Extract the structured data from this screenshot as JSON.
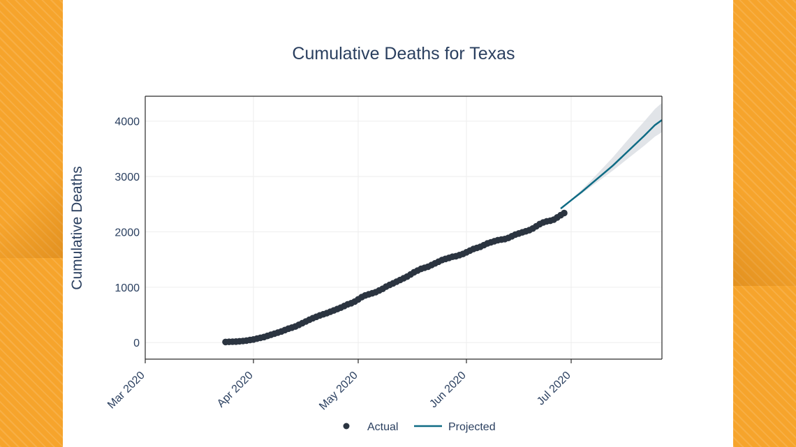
{
  "colors": {
    "accent": "#f6a42c",
    "text": "#2a3f5f",
    "actual_marker": "#2b3440",
    "projected_line": "#0e6b84",
    "band": "#d9dde2",
    "grid": "#eeeeee"
  },
  "chart_data": {
    "type": "line",
    "title": "Cumulative Deaths for Texas",
    "xlabel": "",
    "ylabel": "Cumulative Deaths",
    "ylim": [
      -300,
      4450
    ],
    "xlim": [
      "2020-03-01",
      "2020-07-27"
    ],
    "x_ticks": [
      {
        "date": "2020-03-01",
        "label": "Mar 2020"
      },
      {
        "date": "2020-04-01",
        "label": "Apr 2020"
      },
      {
        "date": "2020-05-01",
        "label": "May 2020"
      },
      {
        "date": "2020-06-01",
        "label": "Jun 2020"
      },
      {
        "date": "2020-07-01",
        "label": "Jul 2020"
      }
    ],
    "y_ticks": [
      {
        "value": 0,
        "label": "0"
      },
      {
        "value": 1000,
        "label": "1000"
      },
      {
        "value": 2000,
        "label": "2000"
      },
      {
        "value": 3000,
        "label": "3000"
      },
      {
        "value": 4000,
        "label": "4000"
      }
    ],
    "grid": true,
    "legend_position": "bottom",
    "series": [
      {
        "name": "Actual",
        "kind": "markers",
        "x": [
          "2020-03-24",
          "2020-03-25",
          "2020-03-26",
          "2020-03-27",
          "2020-03-28",
          "2020-03-29",
          "2020-03-30",
          "2020-03-31",
          "2020-04-01",
          "2020-04-02",
          "2020-04-03",
          "2020-04-04",
          "2020-04-05",
          "2020-04-06",
          "2020-04-07",
          "2020-04-08",
          "2020-04-09",
          "2020-04-10",
          "2020-04-11",
          "2020-04-12",
          "2020-04-13",
          "2020-04-14",
          "2020-04-15",
          "2020-04-16",
          "2020-04-17",
          "2020-04-18",
          "2020-04-19",
          "2020-04-20",
          "2020-04-21",
          "2020-04-22",
          "2020-04-23",
          "2020-04-24",
          "2020-04-25",
          "2020-04-26",
          "2020-04-27",
          "2020-04-28",
          "2020-04-29",
          "2020-04-30",
          "2020-05-01",
          "2020-05-02",
          "2020-05-03",
          "2020-05-04",
          "2020-05-05",
          "2020-05-06",
          "2020-05-07",
          "2020-05-08",
          "2020-05-09",
          "2020-05-10",
          "2020-05-11",
          "2020-05-12",
          "2020-05-13",
          "2020-05-14",
          "2020-05-15",
          "2020-05-16",
          "2020-05-17",
          "2020-05-18",
          "2020-05-19",
          "2020-05-20",
          "2020-05-21",
          "2020-05-22",
          "2020-05-23",
          "2020-05-24",
          "2020-05-25",
          "2020-05-26",
          "2020-05-27",
          "2020-05-28",
          "2020-05-29",
          "2020-05-30",
          "2020-05-31",
          "2020-06-01",
          "2020-06-02",
          "2020-06-03",
          "2020-06-04",
          "2020-06-05",
          "2020-06-06",
          "2020-06-07",
          "2020-06-08",
          "2020-06-09",
          "2020-06-10",
          "2020-06-11",
          "2020-06-12",
          "2020-06-13",
          "2020-06-14",
          "2020-06-15",
          "2020-06-16",
          "2020-06-17",
          "2020-06-18",
          "2020-06-19",
          "2020-06-20",
          "2020-06-21",
          "2020-06-22",
          "2020-06-23",
          "2020-06-24",
          "2020-06-25",
          "2020-06-26",
          "2020-06-27",
          "2020-06-28",
          "2020-06-29"
        ],
        "y": [
          10,
          12,
          15,
          18,
          22,
          28,
          35,
          45,
          55,
          70,
          85,
          100,
          120,
          140,
          160,
          180,
          200,
          225,
          250,
          270,
          290,
          320,
          350,
          380,
          410,
          440,
          465,
          490,
          510,
          530,
          555,
          580,
          605,
          630,
          660,
          690,
          710,
          740,
          780,
          820,
          850,
          870,
          890,
          910,
          940,
          970,
          1010,
          1040,
          1070,
          1100,
          1130,
          1160,
          1190,
          1230,
          1270,
          1300,
          1330,
          1350,
          1370,
          1400,
          1430,
          1460,
          1490,
          1510,
          1530,
          1550,
          1560,
          1580,
          1600,
          1630,
          1660,
          1690,
          1710,
          1730,
          1760,
          1790,
          1810,
          1830,
          1850,
          1860,
          1870,
          1890,
          1920,
          1950,
          1970,
          1990,
          2010,
          2030,
          2060,
          2100,
          2140,
          2170,
          2190,
          2200,
          2220,
          2260,
          2300,
          2340
        ]
      },
      {
        "name": "Projected",
        "kind": "line",
        "x": [
          "2020-06-28",
          "2020-07-01",
          "2020-07-04",
          "2020-07-07",
          "2020-07-10",
          "2020-07-13",
          "2020-07-16",
          "2020-07-19",
          "2020-07-22",
          "2020-07-25",
          "2020-07-27"
        ],
        "y": [
          2420,
          2570,
          2720,
          2880,
          3040,
          3200,
          3380,
          3560,
          3740,
          3930,
          4020
        ],
        "lower": [
          2420,
          2555,
          2690,
          2830,
          2970,
          3110,
          3260,
          3410,
          3560,
          3720,
          3800
        ],
        "upper": [
          2420,
          2590,
          2760,
          2950,
          3150,
          3350,
          3570,
          3790,
          4000,
          4220,
          4330
        ]
      }
    ]
  }
}
